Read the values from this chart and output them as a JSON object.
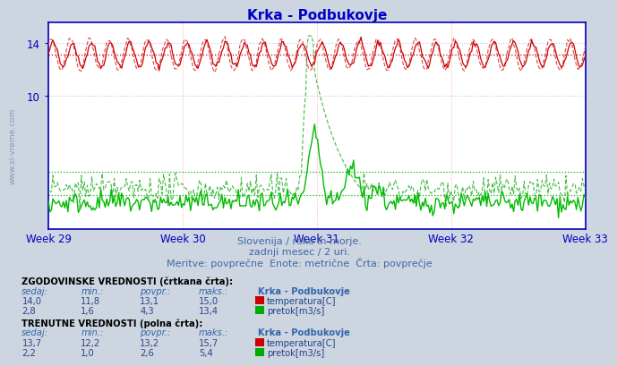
{
  "title": "Krka - Podbukovje",
  "title_color": "#0000cc",
  "subtitle_lines": [
    "Slovenija / reke in morje.",
    "zadnji mesec / 2 uri.",
    "Meritve: povprečne  Enote: metrične  Črta: povprečje"
  ],
  "subtitle_color": "#4466aa",
  "watermark": "www.si-vreme.com",
  "bg_color": "#ccd5e0",
  "plot_bg_color": "#ffffff",
  "axis_color": "#0000bb",
  "grid_color_h": "#cc9999",
  "grid_color_v": "#cc9999",
  "grid_h_color": "#aaaadd",
  "x_ticks": [
    "Week 29",
    "Week 30",
    "Week 31",
    "Week 32",
    "Week 33"
  ],
  "y_ticks": [
    10,
    14
  ],
  "ylim": [
    0,
    15.5
  ],
  "n_points": 360,
  "temp_solid_color": "#cc0000",
  "temp_dashed_color": "#dd4444",
  "flow_solid_color": "#00bb00",
  "flow_dashed_color": "#44bb44",
  "temp_avg_color": "#cc0000",
  "flow_avg_solid": 2.6,
  "flow_avg_hist": 4.3,
  "temp_avg": 13.1,
  "red_sq": "#cc0000",
  "green_sq": "#00aa00",
  "table_bold_color": "#000000",
  "table_header_color": "#3366aa",
  "table_val_color": "#334488",
  "table_label_color": "#224488"
}
